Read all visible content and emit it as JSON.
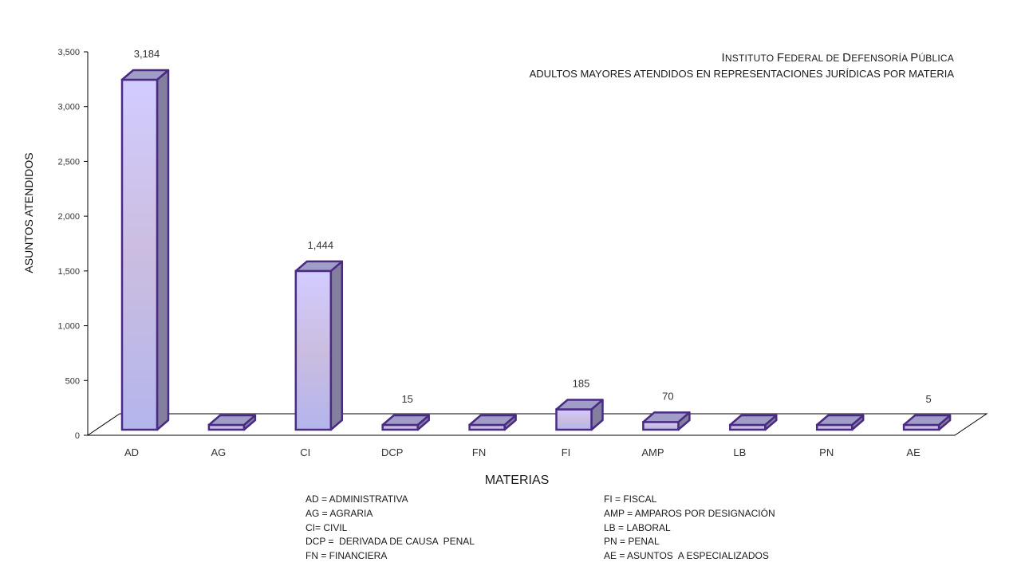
{
  "title": {
    "line1_parts": [
      {
        "cap": "I",
        "rest": "NSTITUTO"
      },
      {
        "cap": "F",
        "rest": "EDERAL DE"
      },
      {
        "cap": "D",
        "rest": "EFENSORÍA"
      },
      {
        "cap": "P",
        "rest": "ÚBLICA"
      }
    ],
    "line2": "ADULTOS MAYORES ATENDIDOS EN REPRESENTACIONES  JURÍDICAS POR MATERIA"
  },
  "chart_data": {
    "type": "bar",
    "title": "INSTITUTO FEDERAL DE DEFENSORÍA PÚBLICA",
    "subtitle": "ADULTOS MAYORES ATENDIDOS EN REPRESENTACIONES  JURÍDICAS POR MATERIA",
    "xlabel": "MATERIAS",
    "ylabel": "ASUNTOS ATENDIDOS",
    "categories": [
      "AD",
      "AG",
      "CI",
      "DCP",
      "FN",
      "FI",
      "AMP",
      "LB",
      "PN",
      "AE"
    ],
    "values": [
      3184,
      0,
      1444,
      15,
      0,
      185,
      70,
      0,
      0,
      5
    ],
    "data_labels": [
      "3,184",
      "",
      "1,444",
      "15",
      "",
      "185",
      "70",
      "",
      "",
      "5"
    ],
    "ylim": [
      0,
      3500
    ],
    "yticks": [
      0,
      500,
      1000,
      1500,
      2000,
      2500,
      3000,
      3500
    ],
    "ytick_labels": [
      "0",
      "500",
      "1,000",
      "1,500",
      "2,000",
      "2,500",
      "3,000",
      "3,500"
    ],
    "grid": false,
    "style": "3d-column",
    "colors": {
      "bar_top": "#d2ccff",
      "bar_mid": "#cbbde0",
      "bar_bottom": "#b3b5ec",
      "bar_side": "#857f9f",
      "bar_cap": "#a09dc6",
      "bar_outline": "#4a2b84"
    }
  },
  "legend": {
    "left": [
      "AD = ADMINISTRATIVA",
      "AG = AGRARIA",
      "CI= CIVIL",
      "DCP =  DERIVADA DE CAUSA  PENAL",
      "FN = FINANCIERA"
    ],
    "right": [
      "FI = FISCAL",
      "AMP = AMPAROS POR DESIGNACIÓN",
      "LB = LABORAL",
      "PN = PENAL",
      "AE = ASUNTOS  A ESPECIALIZADOS"
    ]
  }
}
